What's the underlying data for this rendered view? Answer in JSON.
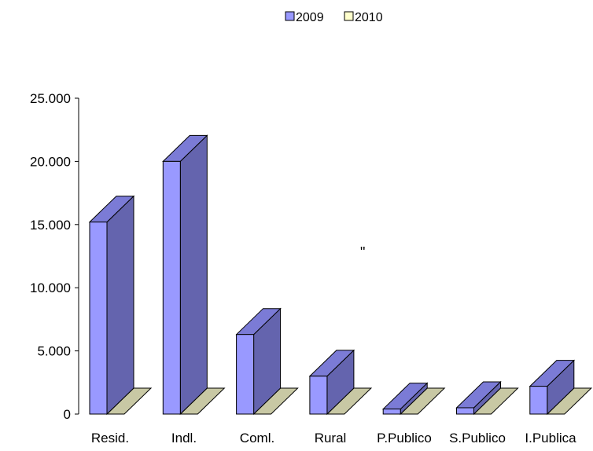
{
  "chart_data": {
    "type": "bar",
    "categories": [
      "Resid.",
      "Indl.",
      "Coml.",
      "Rural",
      "P.Publico",
      "S.Publico",
      "I.Publica"
    ],
    "series": [
      {
        "name": "2009",
        "values": [
          15200,
          20000,
          6300,
          3000,
          400,
          500,
          2200
        ]
      },
      {
        "name": "2010",
        "values": [
          0,
          0,
          0,
          0,
          0,
          0,
          0
        ]
      }
    ],
    "yticks": [
      "0",
      "5.000",
      "10.000",
      "15.000",
      "20.000",
      "25.000"
    ],
    "ylim": [
      0,
      25000
    ],
    "legend_position": "top",
    "annotation": "\"",
    "colors": {
      "2009_front": "#9999ff",
      "2009_side": "#6464ae",
      "2009_top": "#7b7bd6",
      "2010_floor": "#c8c8a4"
    }
  }
}
